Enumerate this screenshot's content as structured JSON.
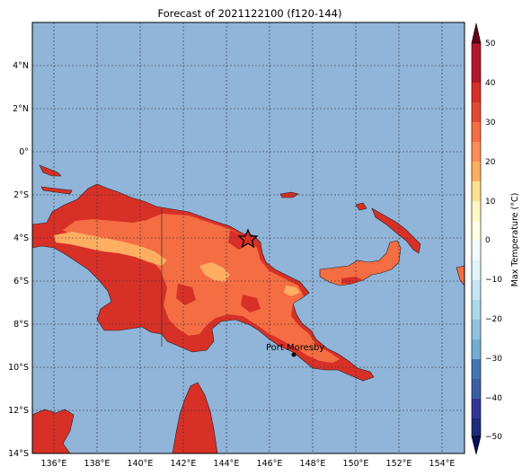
{
  "title": "Forecast of 2021122100 (f120-144)",
  "colors": {
    "ocean": "#91b4d9",
    "land_hot": "#d73027",
    "land_warm": "#f46d43",
    "land_mild": "#fc8d59",
    "land_cool": "#fdae61",
    "city_marker": "#000000",
    "star": "#d73027"
  },
  "map": {
    "lon_ticks": [
      "136°E",
      "138°E",
      "140°E",
      "142°E",
      "144°E",
      "146°E",
      "148°E",
      "150°E",
      "152°E",
      "154°E"
    ],
    "lat_ticks": [
      "4°N",
      "2°N",
      "0°",
      "2°S",
      "4°S",
      "6°S",
      "8°S",
      "10°S",
      "12°S",
      "14°S"
    ],
    "city_label": "Port Moresby",
    "star_icon": "star-marker-icon"
  },
  "colorbar": {
    "label": "Max Temperature (°C)",
    "ticks": [
      "50",
      "40",
      "30",
      "20",
      "10",
      "0",
      "−10",
      "−20",
      "−30",
      "−40",
      "−50"
    ],
    "bins": [
      "#67001f",
      "#b2182b",
      "#d73027",
      "#f46d43",
      "#fc8d59",
      "#fdae61",
      "#fee090",
      "#ffffbf",
      "#e0f3f8",
      "#abd9e9",
      "#74add1",
      "#4575b4",
      "#313695",
      "#2b2f8c",
      "#08105e",
      "#0a0a5c",
      "#1c1c7a",
      "#24247c",
      "#2a2a80",
      "#000050"
    ]
  }
}
